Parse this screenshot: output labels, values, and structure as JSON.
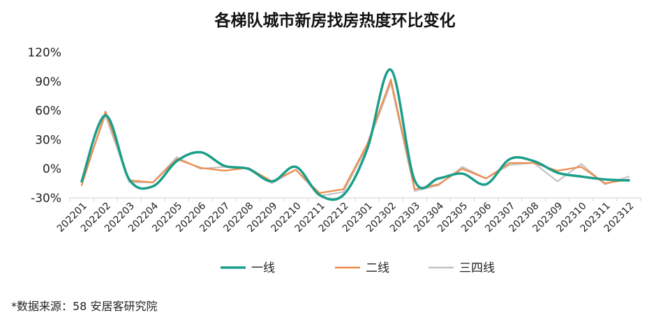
{
  "title": "各梯队城市新房找房热度环比变化",
  "source_note": "*数据来源：58 安居客研究院",
  "chart_data": {
    "type": "line",
    "title": "各梯队城市新房找房热度环比变化",
    "xlabel": "",
    "ylabel": "",
    "x": [
      "202201",
      "202202",
      "202203",
      "202204",
      "202205",
      "202206",
      "202207",
      "202208",
      "202209",
      "202210",
      "202211",
      "202212",
      "202301",
      "202302",
      "202303",
      "202304",
      "202305",
      "202306",
      "202307",
      "202308",
      "202309",
      "202310",
      "202311",
      "202312"
    ],
    "ylim": [
      -30,
      120
    ],
    "yticks": [
      -30,
      0,
      30,
      60,
      90,
      120
    ],
    "ytick_labels": [
      "-30%",
      "0%",
      "30%",
      "60%",
      "90%",
      "120%"
    ],
    "grid": false,
    "legend_position": "bottom",
    "series": [
      {
        "name": "一线",
        "color": "#1a9e8a",
        "smooth": true,
        "values": [
          -13,
          55,
          -11,
          -18,
          8,
          17,
          3,
          0,
          -13,
          2,
          -27,
          -27,
          20,
          102,
          -12,
          -10,
          -5,
          -16,
          10,
          8,
          -4,
          -8,
          -11,
          -12
        ]
      },
      {
        "name": "二线",
        "color": "#ef8a4a",
        "smooth": false,
        "values": [
          -17,
          59,
          -12,
          -14,
          10,
          1,
          -2,
          1,
          -13,
          -1,
          -25,
          -21,
          25,
          92,
          -21,
          -16,
          0,
          -10,
          6,
          6,
          -2,
          2,
          -15,
          -11
        ]
      },
      {
        "name": "三四线",
        "color": "#c3c3c3",
        "smooth": false,
        "values": [
          -12,
          55,
          -14,
          -14,
          12,
          0,
          2,
          0,
          -15,
          -1,
          -28,
          -24,
          23,
          88,
          -23,
          -17,
          2,
          -10,
          4,
          6,
          -13,
          5,
          -16,
          -8
        ]
      }
    ]
  }
}
